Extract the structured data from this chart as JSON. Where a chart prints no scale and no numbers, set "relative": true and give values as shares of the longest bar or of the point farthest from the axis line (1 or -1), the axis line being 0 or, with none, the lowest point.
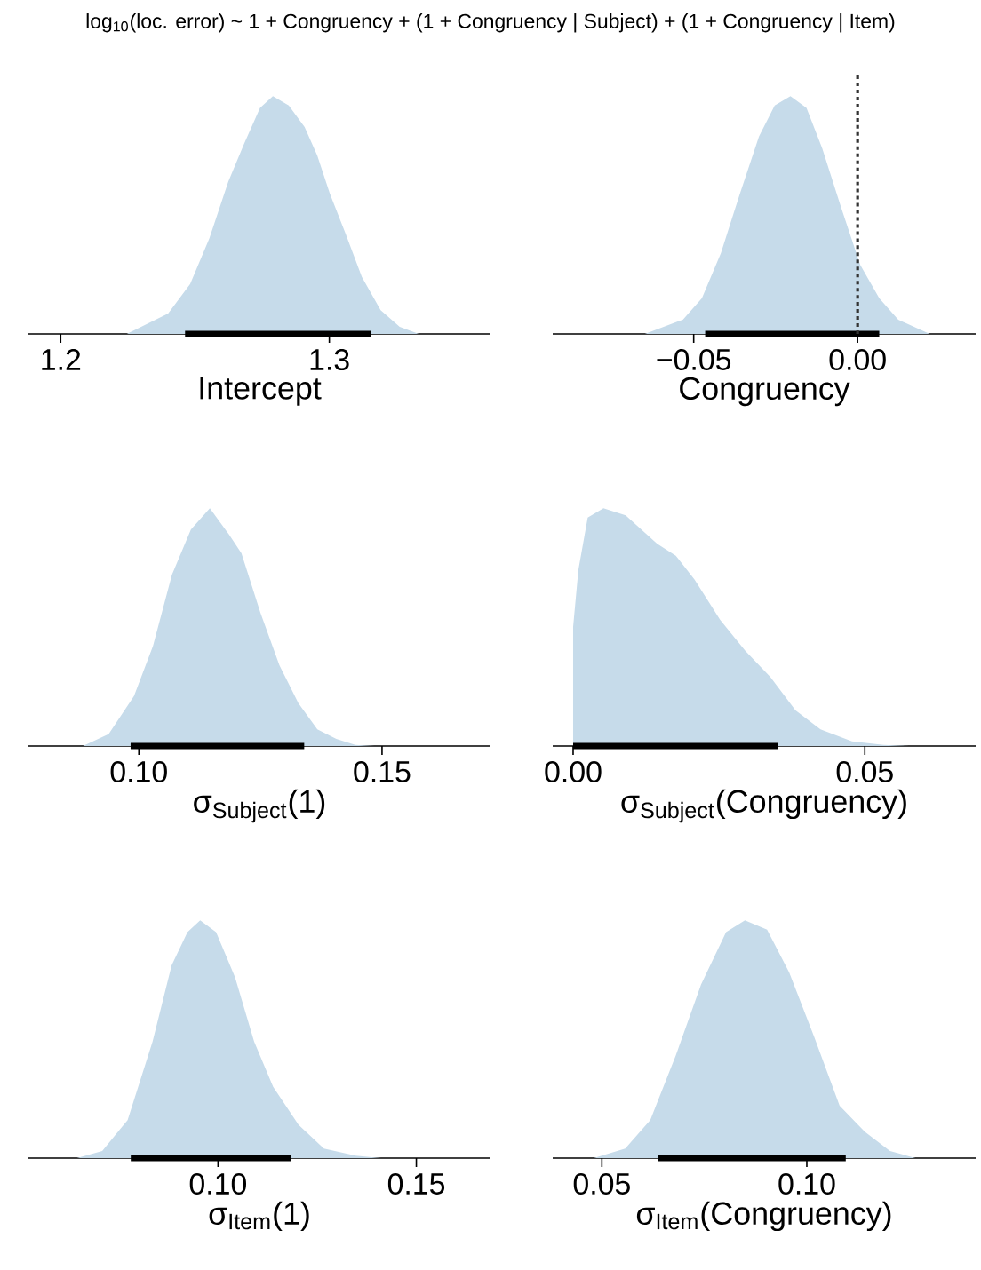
{
  "chart_data": [
    {
      "type": "area",
      "title": "log$_{10}$(loc. error) ~ 1 + Congruency + (1 + Congruency | Subject) + (1 + Congruency | Item)",
      "xlabel": "Intercept",
      "relative": true,
      "xlim": [
        1.188,
        1.36
      ],
      "xticks": [
        1.2,
        1.3
      ],
      "series": [
        {
          "color": "#c6dbea",
          "x": [
            1.2246,
            1.24,
            1.2482,
            1.2553,
            1.2624,
            1.2683,
            1.2742,
            1.279,
            1.2849,
            1.2908,
            1.2955,
            1.3002,
            1.3061,
            1.3121,
            1.3191,
            1.3262,
            1.3333
          ],
          "values": [
            0,
            0.086,
            0.21,
            0.4,
            0.64,
            0.8,
            0.95,
            1,
            0.96,
            0.87,
            0.75,
            0.59,
            0.42,
            0.24,
            0.1,
            0.03,
            0
          ]
        },
        {
          "type": "line",
          "color": "#000000",
          "x": [
            1.2463,
            1.3154
          ],
          "values": [
            0,
            0
          ]
        }
      ]
    },
    {
      "type": "area",
      "xlabel": "Congruency",
      "relative": true,
      "xlim": [
        -0.093,
        0.036
      ],
      "xticks": [
        {
          "value": -0.05,
          "label": "−0.05"
        },
        {
          "value": 0,
          "label": "0.00"
        }
      ],
      "ref_lines": [
        {
          "axis": "x",
          "value": 0,
          "line_style": "dotted",
          "color": "#333333"
        }
      ],
      "series": [
        {
          "color": "#c6dbea",
          "x": [
            -0.0649,
            -0.0533,
            -0.0475,
            -0.0417,
            -0.0359,
            -0.0301,
            -0.0253,
            -0.0205,
            -0.0156,
            -0.0108,
            -0.005,
            0.0008,
            0.0066,
            0.0124,
            0.022
          ],
          "values": [
            0,
            0.06,
            0.15,
            0.34,
            0.59,
            0.83,
            0.96,
            1,
            0.95,
            0.78,
            0.53,
            0.29,
            0.15,
            0.06,
            0
          ]
        },
        {
          "type": "line",
          "color": "#000000",
          "x": [
            -0.0465,
            0.0066
          ],
          "values": [
            0,
            0
          ]
        }
      ]
    },
    {
      "type": "area",
      "xlabel": "σ$_{Subject}$(1)",
      "relative": true,
      "xlim": [
        0.0773,
        0.1723
      ],
      "xticks": [
        {
          "value": 0.1,
          "label": "0.10"
        },
        {
          "value": 0.15,
          "label": "0.15"
        }
      ],
      "series": [
        {
          "color": "#c6dbea",
          "x": [
            0.0885,
            0.0938,
            0.099,
            0.1029,
            0.1068,
            0.1107,
            0.1146,
            0.1185,
            0.1211,
            0.125,
            0.1289,
            0.1328,
            0.1367,
            0.1406,
            0.1445,
            0.1484
          ],
          "values": [
            0,
            0.05,
            0.21,
            0.42,
            0.72,
            0.91,
            1,
            0.89,
            0.81,
            0.56,
            0.34,
            0.18,
            0.07,
            0.03,
            0.005,
            0
          ]
        },
        {
          "type": "line",
          "color": "#000000",
          "x": [
            0.0983,
            0.134
          ],
          "values": [
            0,
            0
          ]
        }
      ]
    },
    {
      "type": "area",
      "xlabel": "σ$_{Subject}$(Congruency)",
      "relative": true,
      "xlim": [
        -0.0035,
        0.069
      ],
      "xticks": [
        {
          "value": 0,
          "label": "0.00"
        },
        {
          "value": 0.05,
          "label": "0.05"
        }
      ],
      "series": [
        {
          "color": "#c6dbea",
          "x": [
            0,
            0,
            0.0009,
            0.0025,
            0.0052,
            0.009,
            0.0144,
            0.0176,
            0.0208,
            0.0252,
            0.0295,
            0.0338,
            0.0381,
            0.0424,
            0.0478,
            0.0532,
            0.0576
          ],
          "values": [
            0,
            0.5,
            0.74,
            0.96,
            1,
            0.97,
            0.85,
            0.8,
            0.7,
            0.53,
            0.4,
            0.29,
            0.15,
            0.07,
            0.02,
            0.005,
            0
          ]
        },
        {
          "type": "line",
          "color": "#000000",
          "x": [
            0,
            0.0351
          ],
          "values": [
            0,
            0
          ]
        }
      ]
    },
    {
      "type": "area",
      "xlabel": "σ$_{Item}$(1)",
      "relative": true,
      "xlim": [
        0.0522,
        0.1687
      ],
      "xticks": [
        {
          "value": 0.1,
          "label": "0.10"
        },
        {
          "value": 0.15,
          "label": "0.15"
        }
      ],
      "series": [
        {
          "color": "#c6dbea",
          "x": [
            0.0644,
            0.0708,
            0.0772,
            0.0835,
            0.0883,
            0.0923,
            0.0955,
            0.0995,
            0.1043,
            0.1091,
            0.1139,
            0.1203,
            0.1267,
            0.1347,
            0.1411
          ],
          "values": [
            0,
            0.03,
            0.16,
            0.49,
            0.81,
            0.95,
            1,
            0.95,
            0.76,
            0.49,
            0.3,
            0.14,
            0.04,
            0.01,
            0
          ]
        },
        {
          "type": "line",
          "color": "#000000",
          "x": [
            0.078,
            0.1185
          ],
          "values": [
            0,
            0
          ]
        }
      ]
    },
    {
      "type": "area",
      "xlabel": "σ$_{Item}$(Congruency)",
      "relative": true,
      "xlim": [
        0.038,
        0.1412
      ],
      "xticks": [
        {
          "value": 0.05,
          "label": "0.05"
        },
        {
          "value": 0.1,
          "label": "0.10"
        }
      ],
      "series": [
        {
          "color": "#c6dbea",
          "x": [
            0.048,
            0.0557,
            0.0618,
            0.068,
            0.0742,
            0.0803,
            0.0849,
            0.0903,
            0.0957,
            0.1018,
            0.108,
            0.1142,
            0.1203,
            0.1265
          ],
          "values": [
            0,
            0.04,
            0.16,
            0.43,
            0.73,
            0.95,
            1,
            0.96,
            0.78,
            0.51,
            0.22,
            0.11,
            0.03,
            0
          ]
        },
        {
          "type": "line",
          "color": "#000000",
          "x": [
            0.0638,
            0.1095
          ],
          "values": [
            0,
            0
          ]
        }
      ]
    }
  ]
}
